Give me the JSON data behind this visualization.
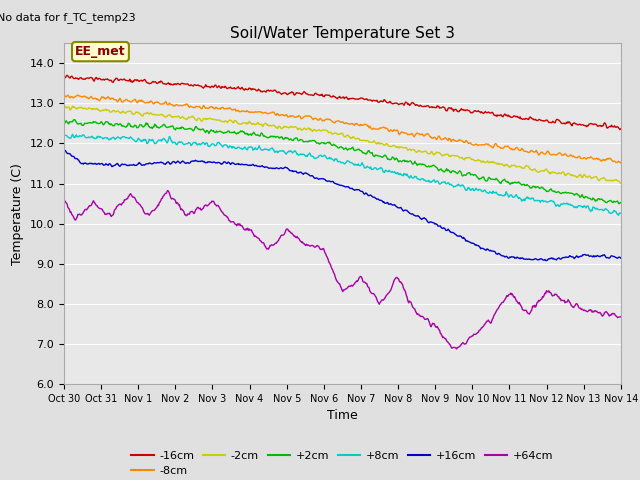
{
  "title": "Soil/Water Temperature Set 3",
  "no_data_label": "No data for f_TC_temp23",
  "annotation_label": "EE_met",
  "xlabel": "Time",
  "ylabel": "Temperature (C)",
  "ylim": [
    6.0,
    14.5
  ],
  "xlim": [
    0,
    15
  ],
  "xtick_labels": [
    "Oct 30",
    "Oct 31",
    "Nov 1",
    "Nov 2",
    "Nov 3",
    "Nov 4",
    "Nov 5",
    "Nov 6",
    "Nov 7",
    "Nov 8",
    "Nov 9",
    "Nov 10",
    "Nov 11",
    "Nov 12",
    "Nov 13",
    "Nov 14"
  ],
  "ytick_labels": [
    "6.0",
    "7.0",
    "8.0",
    "9.0",
    "10.0",
    "11.0",
    "12.0",
    "13.0",
    "14.0"
  ],
  "series_colors": [
    "#cc0000",
    "#ff8800",
    "#cccc00",
    "#00bb00",
    "#00cccc",
    "#0000cc",
    "#aa00aa"
  ],
  "series_labels": [
    "-16cm",
    "-8cm",
    "-2cm",
    "+2cm",
    "+8cm",
    "+16cm",
    "+64cm"
  ],
  "background_color": "#e0e0e0",
  "plot_bg_color": "#e8e8e8",
  "title_fontsize": 11,
  "axis_fontsize": 9,
  "legend_fontsize": 8,
  "tick_fontsize": 8
}
